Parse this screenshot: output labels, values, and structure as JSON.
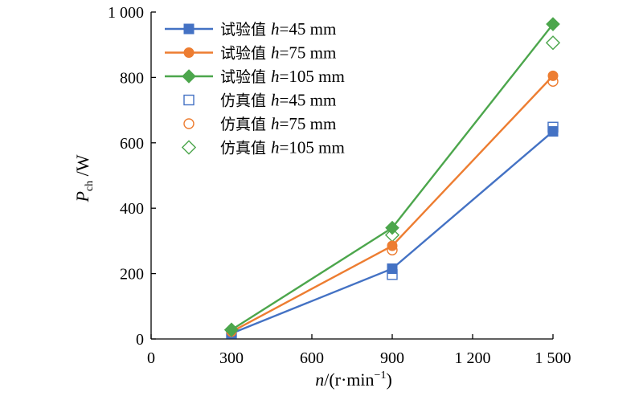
{
  "chart_data": {
    "type": "line",
    "title": "",
    "xlabel": {
      "var": "n",
      "unit": "/(r·min",
      "exp": "−1",
      "close": ")"
    },
    "ylabel": {
      "var": "P",
      "sub": "ch",
      "unit": " /W"
    },
    "xlim": [
      0,
      1500
    ],
    "ylim": [
      0,
      1000
    ],
    "x_ticks": [
      0,
      300,
      600,
      900,
      1200,
      1500
    ],
    "x_tick_labels": [
      "0",
      "300",
      "600",
      "900",
      "1 200",
      "1 500"
    ],
    "y_ticks": [
      0,
      200,
      400,
      600,
      800,
      1000
    ],
    "y_tick_labels": [
      "0",
      "200",
      "400",
      "600",
      "800",
      "1 000"
    ],
    "grid": false,
    "legend_position": "top-left",
    "series": [
      {
        "name": "试验值 h=45 mm",
        "prefix": "试验值 ",
        "var": "h",
        "suffix": "=45 mm",
        "marker": "square",
        "filled": true,
        "line": true,
        "color": "#4472C4",
        "x": [
          300,
          900,
          1500
        ],
        "y": [
          17,
          215,
          635
        ]
      },
      {
        "name": "试验值 h=75 mm",
        "prefix": "试验值 ",
        "var": "h",
        "suffix": "=75 mm",
        "marker": "circle",
        "filled": true,
        "line": true,
        "color": "#ED7D31",
        "x": [
          300,
          900,
          1500
        ],
        "y": [
          22,
          285,
          805
        ]
      },
      {
        "name": "试验值 h=105 mm",
        "prefix": "试验值 ",
        "var": "h",
        "suffix": "=105 mm",
        "marker": "diamond",
        "filled": true,
        "line": true,
        "color": "#4CA64C",
        "x": [
          300,
          900,
          1500
        ],
        "y": [
          28,
          340,
          963
        ]
      },
      {
        "name": "仿真值 h=45 mm",
        "prefix": "仿真值 ",
        "var": "h",
        "suffix": "=45 mm",
        "marker": "square",
        "filled": false,
        "line": false,
        "color": "#4472C4",
        "x": [
          300,
          900,
          1500
        ],
        "y": [
          18,
          197,
          648
        ]
      },
      {
        "name": "仿真值 h=75 mm",
        "prefix": "仿真值 ",
        "var": "h",
        "suffix": "=75 mm",
        "marker": "circle",
        "filled": false,
        "line": false,
        "color": "#ED7D31",
        "x": [
          300,
          900,
          1500
        ],
        "y": [
          26,
          272,
          788
        ]
      },
      {
        "name": "仿真值 h=105 mm",
        "prefix": "仿真值 ",
        "var": "h",
        "suffix": "=105 mm",
        "marker": "diamond",
        "filled": false,
        "line": false,
        "color": "#4CA64C",
        "x": [
          300,
          900,
          1500
        ],
        "y": [
          28,
          318,
          906
        ]
      }
    ]
  }
}
